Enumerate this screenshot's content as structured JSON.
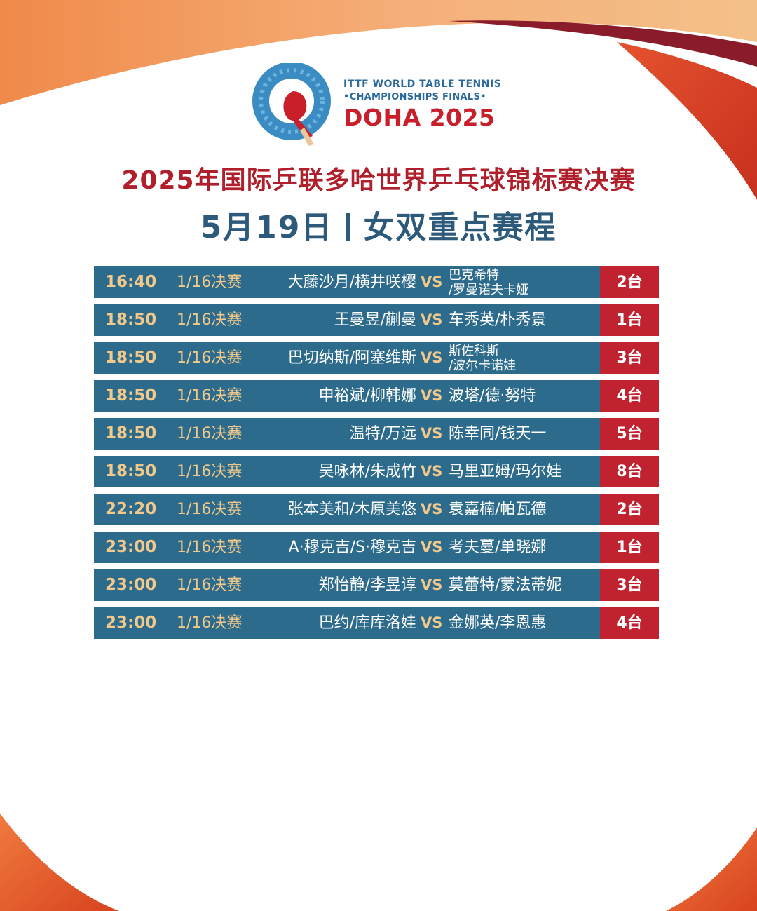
{
  "logo": {
    "line1": "ITTF WORLD TABLE TENNIS",
    "line2": "•CHAMPIONSHIPS FINALS•",
    "line3": "DOHA 2025"
  },
  "header": {
    "title": "2025年国际乒联多哈世界乒乓球锦标赛决赛",
    "date": "5月19日",
    "event": "女双重点赛程"
  },
  "colors": {
    "row_bg": "#2d6b8c",
    "table_bg": "#c0222f",
    "accent_gold": "#f2c98a",
    "title_red": "#b0202c",
    "subtitle_blue": "#2d5a7a"
  },
  "matches": [
    {
      "time": "16:40",
      "round": "1/16决赛",
      "team_a": "大藤沙月/横井咲樱",
      "vs": "VS",
      "team_b": "巴克希特\n/罗曼诺夫卡娅",
      "table": "2台"
    },
    {
      "time": "18:50",
      "round": "1/16决赛",
      "team_a": "王曼昱/蒯曼",
      "vs": "VS",
      "team_b": "车秀英/朴秀景",
      "table": "1台"
    },
    {
      "time": "18:50",
      "round": "1/16决赛",
      "team_a": "巴切纳斯/阿塞维斯",
      "vs": "VS",
      "team_b": "斯佐科斯\n/波尔卡诺娃",
      "table": "3台"
    },
    {
      "time": "18:50",
      "round": "1/16决赛",
      "team_a": "申裕斌/柳韩娜",
      "vs": "VS",
      "team_b": "波塔/德·努特",
      "table": "4台"
    },
    {
      "time": "18:50",
      "round": "1/16决赛",
      "team_a": "温特/万远",
      "vs": "VS",
      "team_b": "陈幸同/钱天一",
      "table": "5台"
    },
    {
      "time": "18:50",
      "round": "1/16决赛",
      "team_a": "吴咏林/朱成竹",
      "vs": "VS",
      "team_b": "马里亚姆/玛尔娃",
      "table": "8台"
    },
    {
      "time": "22:20",
      "round": "1/16决赛",
      "team_a": "张本美和/木原美悠",
      "vs": "VS",
      "team_b": "袁嘉楠/帕瓦德",
      "table": "2台"
    },
    {
      "time": "23:00",
      "round": "1/16决赛",
      "team_a": "A·穆克吉/S·穆克吉",
      "vs": "VS",
      "team_b": "考夫蔓/单晓娜",
      "table": "1台"
    },
    {
      "time": "23:00",
      "round": "1/16决赛",
      "team_a": "郑怡静/李昱谆",
      "vs": "VS",
      "team_b": "莫蕾特/蒙法蒂妮",
      "table": "3台"
    },
    {
      "time": "23:00",
      "round": "1/16决赛",
      "team_a": "巴约/库库洛娃",
      "vs": "VS",
      "team_b": "金娜英/李恩惠",
      "table": "4台"
    }
  ]
}
